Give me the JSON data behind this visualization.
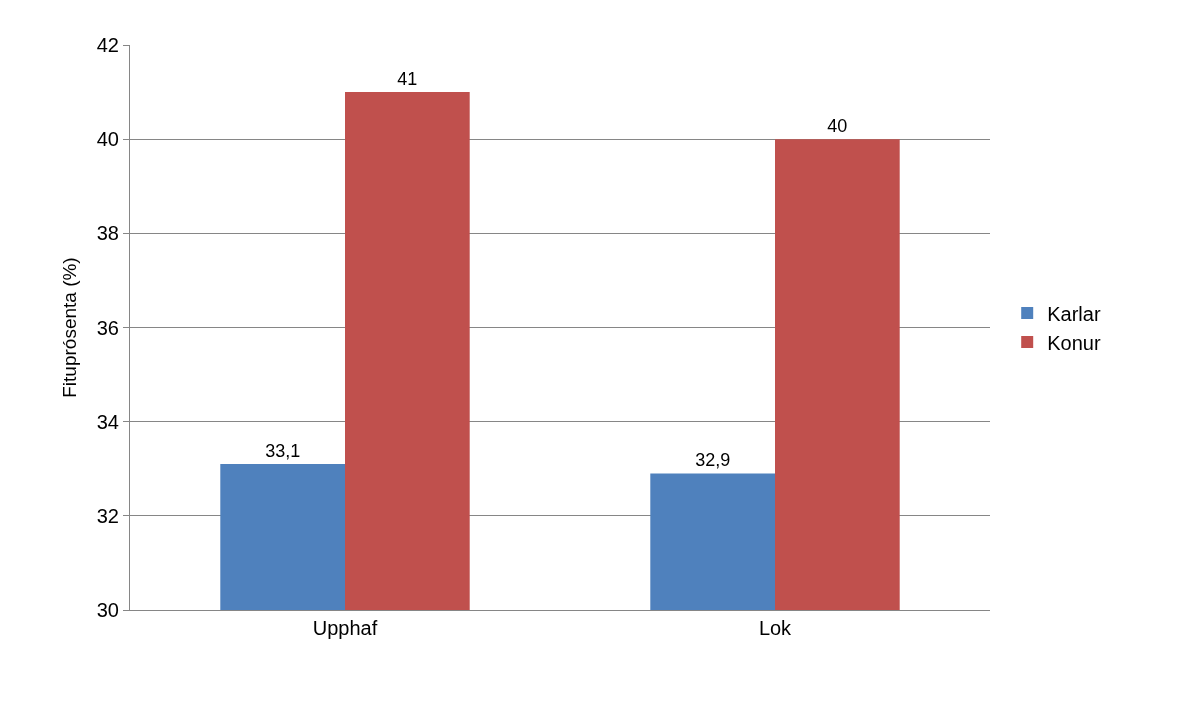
{
  "chart_data": {
    "type": "bar",
    "ylabel": "Fituprósenta (%)",
    "categories": [
      "Upphaf",
      "Lok"
    ],
    "series": [
      {
        "name": "Karlar",
        "color": "#4f81bd",
        "values": [
          33.1,
          32.9
        ],
        "value_labels": [
          "33,1",
          "32,9"
        ]
      },
      {
        "name": "Konur",
        "color": "#c0504d",
        "values": [
          41,
          40
        ],
        "value_labels": [
          "41",
          "40"
        ]
      }
    ],
    "ylim": [
      30,
      42
    ],
    "yticks": [
      30,
      32,
      34,
      36,
      38,
      40,
      42
    ],
    "grid": "y",
    "legend": "right"
  }
}
